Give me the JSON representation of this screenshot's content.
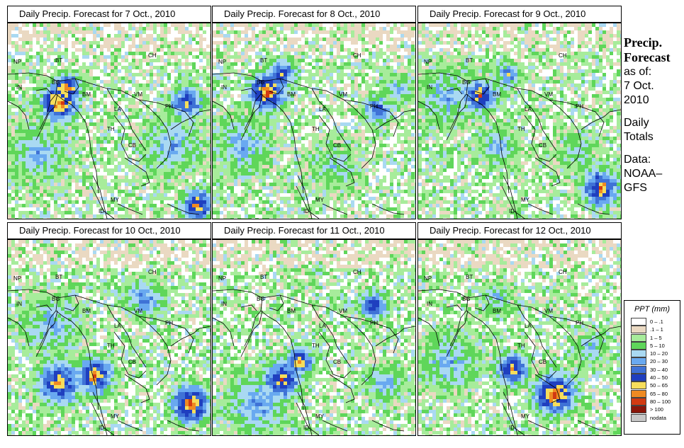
{
  "panels": [
    {
      "title": "Daily Precip. Forecast for  7 Oct., 2010"
    },
    {
      "title": "Daily Precip. Forecast for  8 Oct., 2010"
    },
    {
      "title": "Daily Precip. Forecast for  9 Oct., 2010"
    },
    {
      "title": "Daily Precip. Forecast for  10 Oct., 2010"
    },
    {
      "title": "Daily Precip. Forecast for  11 Oct., 2010"
    },
    {
      "title": "Daily Precip. Forecast for  12 Oct., 2010"
    }
  ],
  "country_labels": {
    "np": "NP",
    "bt": "BT",
    "ch": "CH",
    "in": "IN",
    "bg": "BG",
    "bm": "BM",
    "vm": "VM",
    "la": "LA",
    "th": "TH",
    "cb": "CB",
    "my": "MY",
    "id": "ID",
    "ph": "PH"
  },
  "side": {
    "heading1": "Precip.",
    "heading2": "Forecast",
    "asof": "as of:",
    "date1": "7 Oct.",
    "date2": "2010",
    "daily1": "Daily",
    "daily2": "Totals",
    "data1": "Data:",
    "data2": "NOAA–",
    "data3": "GFS"
  },
  "legend": {
    "title": "PPT (mm)",
    "bins": [
      {
        "label": "0 – .1",
        "color": "#ffffff"
      },
      {
        "label": ".1 – 1",
        "color": "#ead9c2"
      },
      {
        "label": "1 – 5",
        "color": "#a7ec9b"
      },
      {
        "label": "5 – 10",
        "color": "#5fd65a"
      },
      {
        "label": "10 – 20",
        "color": "#a9d9f2"
      },
      {
        "label": "20 – 30",
        "color": "#69a9f0"
      },
      {
        "label": "30 – 40",
        "color": "#3f72d6"
      },
      {
        "label": "40 – 50",
        "color": "#1f3fbf"
      },
      {
        "label": "50 – 65",
        "color": "#f6dd5b"
      },
      {
        "label": "65 – 80",
        "color": "#ef8a22"
      },
      {
        "label": "80 – 100",
        "color": "#d23a12"
      },
      {
        "label": "> 100",
        "color": "#8a160a"
      },
      {
        "label": "nodata",
        "color": "#c8c8c8"
      }
    ]
  }
}
